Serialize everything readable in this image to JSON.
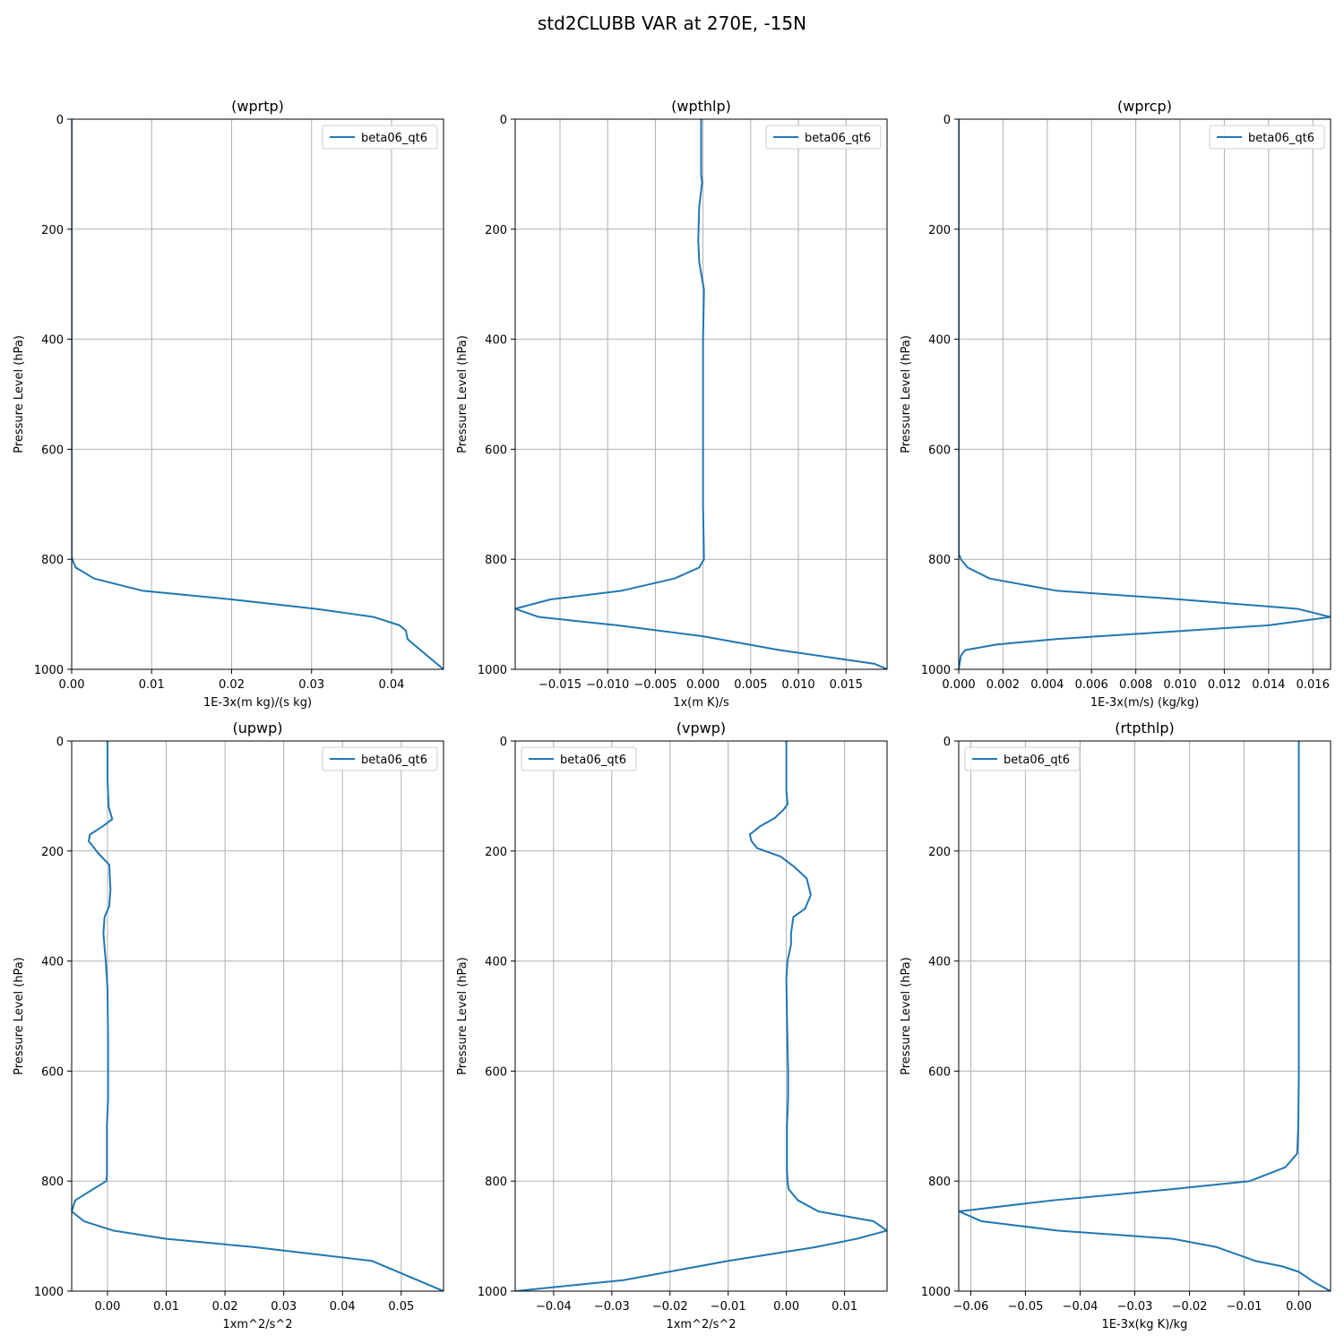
{
  "figure": {
    "title": "std2CLUBB VAR at 270E, -15N"
  },
  "colors": {
    "series": "#1f77b4",
    "grid": "#b0b0b0",
    "axes": "#000000"
  },
  "chart_data": [
    {
      "type": "line",
      "title": "(wprtp)",
      "xlabel": "1E-3x(m kg)/(s kg)",
      "ylabel": "Pressure Level (hPa)",
      "xlim": [
        0,
        0.0465
      ],
      "ylim": [
        1000,
        0
      ],
      "y_inverted": true,
      "xticks": [
        0.0,
        0.01,
        0.02,
        0.03,
        0.04
      ],
      "xtick_labels": [
        "0.00",
        "0.01",
        "0.02",
        "0.03",
        "0.04"
      ],
      "yticks": [
        0,
        200,
        400,
        600,
        800,
        1000
      ],
      "grid": true,
      "legend": "upper right",
      "series": [
        {
          "name": "beta06_qt6",
          "x": [
            0,
            0,
            0,
            0,
            0,
            0,
            0,
            0,
            0,
            0,
            0,
            0.0002,
            0.0005,
            0.0028,
            0.0088,
            0.02,
            0.0305,
            0.0378,
            0.041,
            0.0418,
            0.042,
            0.0428,
            0.0465
          ],
          "y": [
            0,
            100,
            200,
            300,
            400,
            500,
            600,
            700,
            750,
            780,
            795,
            805,
            815,
            835,
            857,
            873,
            890,
            905,
            920,
            930,
            945,
            955,
            1000
          ]
        }
      ]
    },
    {
      "type": "line",
      "title": "(wpthlp)",
      "xlabel": "1x(m K)/s",
      "ylabel": "Pressure Level (hPa)",
      "xlim": [
        -0.0197,
        0.0193
      ],
      "ylim": [
        1000,
        0
      ],
      "y_inverted": true,
      "xticks": [
        -0.015,
        -0.01,
        -0.005,
        0.0,
        0.005,
        0.01,
        0.015
      ],
      "xtick_labels": [
        "−0.015",
        "−0.010",
        "−0.005",
        "0.000",
        "0.005",
        "0.010",
        "0.015"
      ],
      "yticks": [
        0,
        200,
        400,
        600,
        800,
        1000
      ],
      "grid": true,
      "legend": "upper right",
      "series": [
        {
          "name": "beta06_qt6",
          "x": [
            -0.0002,
            -0.0002,
            -0.0001,
            -0.0004,
            -0.0005,
            -0.0004,
            0.0001,
            0.0,
            0.0,
            0.0,
            0.0,
            0.0001,
            -0.0004,
            -0.003,
            -0.0085,
            -0.016,
            -0.0197,
            -0.0172,
            -0.009,
            0.0,
            0.008,
            0.018,
            0.0193
          ],
          "y": [
            0,
            100,
            115,
            160,
            220,
            260,
            310,
            400,
            500,
            600,
            700,
            800,
            815,
            835,
            857,
            873,
            890,
            905,
            920,
            940,
            965,
            990,
            1000
          ]
        }
      ]
    },
    {
      "type": "line",
      "title": "(wprcp)",
      "xlabel": "1E-3x(m/s) (kg/kg)",
      "ylabel": "Pressure Level (hPa)",
      "xlim": [
        0,
        0.0168
      ],
      "ylim": [
        1000,
        0
      ],
      "y_inverted": true,
      "xticks": [
        0.0,
        0.002,
        0.004,
        0.006,
        0.008,
        0.01,
        0.012,
        0.014,
        0.016
      ],
      "xtick_labels": [
        "0.000",
        "0.002",
        "0.004",
        "0.006",
        "0.008",
        "0.010",
        "0.012",
        "0.014",
        "0.016"
      ],
      "yticks": [
        0,
        200,
        400,
        600,
        800,
        1000
      ],
      "grid": true,
      "legend": "upper right",
      "series": [
        {
          "name": "beta06_qt6",
          "x": [
            0,
            0,
            0,
            0,
            0,
            0,
            0,
            0,
            0,
            0.0001,
            0.0004,
            0.0014,
            0.0044,
            0.01,
            0.0153,
            0.0168,
            0.014,
            0.0044,
            0.0017,
            0.0003,
            0.0001,
            0
          ],
          "y": [
            0,
            100,
            200,
            300,
            400,
            500,
            600,
            700,
            790,
            800,
            815,
            835,
            857,
            873,
            890,
            905,
            920,
            945,
            955,
            965,
            975,
            1000
          ]
        }
      ]
    },
    {
      "type": "line",
      "title": "(upwp)",
      "xlabel": "1xm^2/s^2",
      "ylabel": "Pressure Level (hPa)",
      "xlim": [
        -0.0061,
        0.0572
      ],
      "ylim": [
        1000,
        0
      ],
      "y_inverted": true,
      "xticks": [
        0.0,
        0.01,
        0.02,
        0.03,
        0.04,
        0.05
      ],
      "xtick_labels": [
        "0.00",
        "0.01",
        "0.02",
        "0.03",
        "0.04",
        "0.05"
      ],
      "yticks": [
        0,
        200,
        400,
        600,
        800,
        1000
      ],
      "grid": true,
      "legend": "upper right",
      "series": [
        {
          "name": "beta06_qt6",
          "x": [
            0.0,
            0.0,
            0.0002,
            0.0008,
            -0.0008,
            -0.003,
            -0.0032,
            -0.0015,
            0.0003,
            0.0005,
            0.0003,
            -0.0005,
            -0.0007,
            -0.0003,
            0.0,
            0.0001,
            0.0001,
            -0.0001,
            -0.0001,
            -0.0002,
            -0.0025,
            -0.0055,
            -0.0061,
            -0.004,
            0.001,
            0.01,
            0.025,
            0.045,
            0.0572
          ],
          "y": [
            0,
            70,
            120,
            142,
            155,
            170,
            182,
            205,
            225,
            270,
            300,
            320,
            350,
            400,
            450,
            550,
            650,
            700,
            790,
            800,
            815,
            835,
            855,
            873,
            890,
            905,
            920,
            945,
            1000
          ]
        }
      ]
    },
    {
      "type": "line",
      "title": "(vpwp)",
      "xlabel": "1xm^2/s^2",
      "ylabel": "Pressure Level (hPa)",
      "xlim": [
        -0.0466,
        0.0173
      ],
      "ylim": [
        1000,
        0
      ],
      "y_inverted": true,
      "xticks": [
        -0.04,
        -0.03,
        -0.02,
        -0.01,
        0.0,
        0.01
      ],
      "xtick_labels": [
        "−0.04",
        "−0.03",
        "−0.02",
        "−0.01",
        "0.00",
        "0.01"
      ],
      "yticks": [
        0,
        200,
        400,
        600,
        800,
        1000
      ],
      "grid": true,
      "legend": "upper left",
      "series": [
        {
          "name": "beta06_qt6",
          "x": [
            0.0,
            0.0,
            0.0002,
            -0.0005,
            -0.002,
            -0.0045,
            -0.0063,
            -0.006,
            -0.005,
            -0.001,
            0.0015,
            0.0035,
            0.0042,
            0.0032,
            0.0012,
            0.0008,
            0.0008,
            0.0002,
            0.0,
            0.0001,
            0.0003,
            0.0003,
            0.0001,
            0.0001,
            0.0002,
            0.0004,
            0.002,
            0.0055,
            0.015,
            0.0173,
            0.012,
            0.005,
            -0.01,
            -0.028,
            -0.0466
          ],
          "y": [
            0,
            90,
            115,
            125,
            140,
            155,
            170,
            182,
            195,
            210,
            230,
            250,
            280,
            305,
            320,
            350,
            370,
            400,
            430,
            500,
            600,
            650,
            700,
            780,
            800,
            815,
            835,
            855,
            873,
            890,
            905,
            920,
            945,
            980,
            1000
          ]
        }
      ]
    },
    {
      "type": "line",
      "title": "(rtpthlp)",
      "xlabel": "1E-3x(kg K)/kg",
      "ylabel": "Pressure Level (hPa)",
      "xlim": [
        -0.0622,
        0.0058
      ],
      "ylim": [
        1000,
        0
      ],
      "y_inverted": true,
      "xticks": [
        -0.06,
        -0.05,
        -0.04,
        -0.03,
        -0.02,
        -0.01,
        0.0
      ],
      "xtick_labels": [
        "−0.06",
        "−0.05",
        "−0.04",
        "−0.03",
        "−0.02",
        "−0.01",
        "0.00"
      ],
      "yticks": [
        0,
        200,
        400,
        600,
        800,
        1000
      ],
      "grid": true,
      "legend": "upper left",
      "series": [
        {
          "name": "beta06_qt6",
          "x": [
            0.0,
            0.0,
            0.0,
            0.0,
            0.0,
            0.0,
            0.0,
            -0.0001,
            -0.0003,
            -0.0025,
            -0.009,
            -0.0235,
            -0.045,
            -0.0622,
            -0.058,
            -0.044,
            -0.023,
            -0.015,
            -0.008,
            -0.003,
            0.0,
            0.003,
            0.0058
          ],
          "y": [
            0,
            100,
            200,
            300,
            400,
            500,
            600,
            700,
            750,
            775,
            800,
            815,
            835,
            855,
            873,
            890,
            905,
            920,
            945,
            955,
            965,
            985,
            1000
          ]
        }
      ]
    }
  ]
}
